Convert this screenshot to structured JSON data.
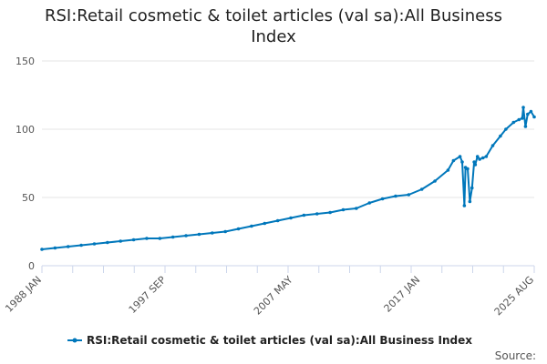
{
  "chart_data": {
    "type": "line",
    "title": "RSI:Retail cosmetic & toilet articles (val sa):All Business Index",
    "xlabel": "",
    "ylabel": "",
    "x_tick_labels": [
      "1988 JAN",
      "1997 SEP",
      "2007 MAY",
      "2017 JAN",
      "2025 AUG"
    ],
    "y_ticks": [
      0,
      50,
      100,
      150
    ],
    "ylim": [
      0,
      150
    ],
    "xlim": [
      "1988-01",
      "2025-08"
    ],
    "grid": true,
    "legend_position": "bottom",
    "credits": "Source:",
    "series": [
      {
        "name": "RSI:Retail cosmetic & toilet articles (val sa):All Business Index",
        "color": "#0077bb",
        "x": [
          "1988-01",
          "1989-01",
          "1990-01",
          "1991-01",
          "1992-01",
          "1993-01",
          "1994-01",
          "1995-01",
          "1996-01",
          "1997-01",
          "1998-01",
          "1999-01",
          "2000-01",
          "2001-01",
          "2002-01",
          "2003-01",
          "2004-01",
          "2005-01",
          "2006-01",
          "2007-01",
          "2008-01",
          "2009-01",
          "2010-01",
          "2011-01",
          "2012-01",
          "2013-01",
          "2014-01",
          "2015-01",
          "2016-01",
          "2017-01",
          "2018-01",
          "2019-01",
          "2019-06",
          "2019-12",
          "2020-02",
          "2020-04",
          "2020-05",
          "2020-07",
          "2020-09",
          "2020-11",
          "2021-01",
          "2021-02",
          "2021-04",
          "2021-06",
          "2021-09",
          "2021-12",
          "2022-06",
          "2023-01",
          "2023-06",
          "2024-01",
          "2024-06",
          "2024-09",
          "2024-10",
          "2024-12",
          "2025-02",
          "2025-05",
          "2025-08"
        ],
        "values": [
          12,
          13,
          14,
          15,
          16,
          17,
          18,
          19,
          20,
          20,
          21,
          22,
          23,
          24,
          25,
          27,
          29,
          31,
          33,
          35,
          37,
          38,
          39,
          41,
          42,
          46,
          49,
          51,
          52,
          56,
          62,
          70,
          77,
          80,
          76,
          44,
          72,
          71,
          47,
          57,
          76,
          74,
          80,
          78,
          79,
          80,
          88,
          95,
          100,
          105,
          107,
          108,
          116,
          102,
          111,
          113,
          109
        ]
      }
    ]
  }
}
